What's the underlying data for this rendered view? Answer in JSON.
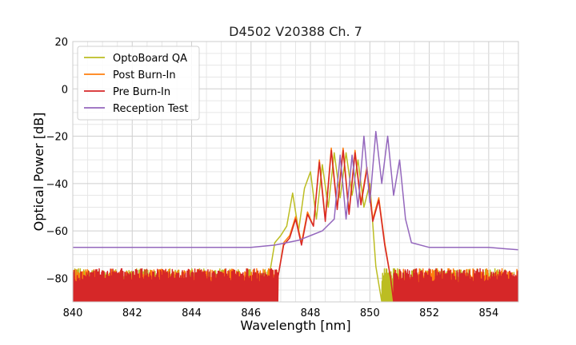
{
  "chart_data": {
    "type": "line",
    "title": "D4502 V20388 Ch. 7",
    "xlabel": "Wavelength [nm]",
    "ylabel": "Optical Power [dB]",
    "xlim": [
      840,
      855
    ],
    "ylim": [
      -90,
      20
    ],
    "xticks": [
      840,
      842,
      844,
      846,
      848,
      850,
      852,
      854
    ],
    "xtick_labels": [
      "840",
      "842",
      "844",
      "846",
      "848",
      "850",
      "852",
      "854"
    ],
    "yticks": [
      20,
      0,
      -20,
      -40,
      -60,
      -80
    ],
    "ytick_labels": [
      "20",
      "0",
      "−20",
      "−40",
      "−60",
      "−80"
    ],
    "grid": true,
    "legend_position": "top-left",
    "noise_floor": -90,
    "series": [
      {
        "name": "OptoBoard QA",
        "color": "#bcbd22",
        "noise_range": [
          840,
          846.6
        ],
        "noise_level": -80,
        "noise_range_2": [
          850.4,
          855
        ],
        "x": [
          846.6,
          846.8,
          847.0,
          847.2,
          847.4,
          847.6,
          847.8,
          848.0,
          848.2,
          848.4,
          848.6,
          848.8,
          849.0,
          849.2,
          849.4,
          849.6,
          849.8,
          850.0,
          850.2,
          850.4
        ],
        "y": [
          -80,
          -65,
          -62,
          -58,
          -44,
          -60,
          -42,
          -35,
          -55,
          -32,
          -50,
          -27,
          -46,
          -27,
          -45,
          -30,
          -50,
          -40,
          -75,
          -90
        ]
      },
      {
        "name": "Post Burn-In",
        "color": "#ff7f0e",
        "noise_range": [
          840,
          846.9
        ],
        "noise_level": -80,
        "noise_range_2": [
          850.8,
          855
        ],
        "x": [
          846.9,
          847.1,
          847.3,
          847.5,
          847.7,
          847.9,
          848.1,
          848.3,
          848.5,
          848.7,
          848.9,
          849.1,
          849.3,
          849.5,
          849.7,
          849.9,
          850.1,
          850.3,
          850.5,
          850.7,
          850.8
        ],
        "y": [
          -80,
          -65,
          -62,
          -54,
          -65,
          -52,
          -58,
          -30,
          -55,
          -25,
          -50,
          -25,
          -52,
          -26,
          -48,
          -33,
          -55,
          -46,
          -65,
          -80,
          -90
        ]
      },
      {
        "name": "Pre Burn-In",
        "color": "#d62728",
        "noise_range": [
          840,
          846.9
        ],
        "noise_level": -80,
        "noise_range_2": [
          850.8,
          855
        ],
        "x": [
          846.9,
          847.1,
          847.3,
          847.5,
          847.7,
          847.9,
          848.1,
          848.3,
          848.5,
          848.7,
          848.9,
          849.1,
          849.3,
          849.5,
          849.7,
          849.9,
          850.1,
          850.3,
          850.5,
          850.7,
          850.8
        ],
        "y": [
          -80,
          -66,
          -63,
          -55,
          -66,
          -53,
          -58,
          -31,
          -56,
          -26,
          -51,
          -26,
          -53,
          -27,
          -49,
          -34,
          -56,
          -47,
          -66,
          -80,
          -90
        ]
      },
      {
        "name": "Reception Test",
        "color": "#9467bd",
        "x": [
          840,
          842,
          844,
          846,
          846.8,
          847.2,
          847.6,
          848.0,
          848.4,
          848.8,
          849.0,
          849.2,
          849.4,
          849.6,
          849.8,
          850.0,
          850.2,
          850.4,
          850.6,
          850.8,
          851.0,
          851.2,
          851.4,
          852,
          854,
          855
        ],
        "y": [
          -67,
          -67,
          -67,
          -67,
          -66,
          -65,
          -64,
          -62,
          -60,
          -55,
          -28,
          -55,
          -28,
          -50,
          -20,
          -48,
          -18,
          -40,
          -20,
          -45,
          -30,
          -55,
          -65,
          -67,
          -67,
          -68
        ]
      }
    ]
  }
}
